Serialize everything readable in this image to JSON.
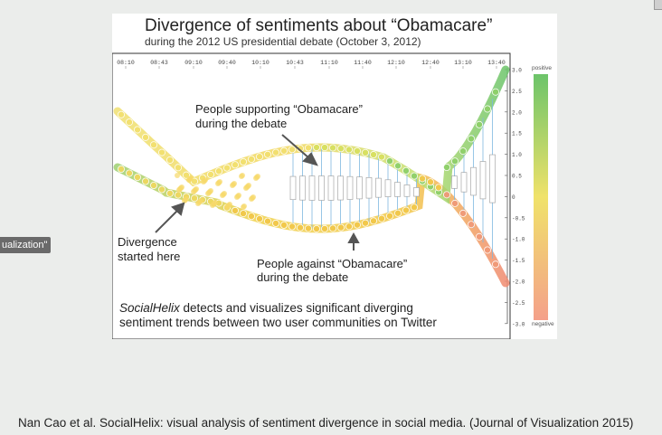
{
  "slide": {
    "side_tab": "ualization\"",
    "caption": "Nan Cao et al. SocialHelix: visual analysis of sentiment divergence in social media. (Journal of Visualization 2015)"
  },
  "figure": {
    "title": "Divergence of sentiments about “Obamacare”",
    "subtitle": "during the 2012 US presidential debate (October 3, 2012)",
    "time_ticks": [
      "08:10",
      "08:43",
      "09:10",
      "09:40",
      "10:10",
      "10:43",
      "11:10",
      "11:40",
      "12:10",
      "12:40",
      "13:10",
      "13:40"
    ],
    "scale_ticks": [
      "3.0",
      "2.5",
      "2.0",
      "1.5",
      "1.0",
      "0.5",
      "0",
      "-0.5",
      "-1.0",
      "-1.5",
      "-2.0",
      "-2.5",
      "-3.0"
    ],
    "legend_positive": "positive",
    "legend_negative": "negative",
    "annotation_support": [
      "People supporting “Obamacare”",
      "during the debate"
    ],
    "annotation_diverge": [
      "Divergence",
      "started here"
    ],
    "annotation_against": [
      "People against “Obamacare”",
      "during the debate"
    ],
    "description_em": "SocialHelix",
    "description_rest": " detects and visualizes significant diverging",
    "description_line2": "sentiment trends between two user communities on Twitter"
  },
  "colors": {
    "positive": "#6cc46a",
    "neutral": "#f0d24a",
    "negative": "#f08a70",
    "stem": "#7fb8e0"
  }
}
